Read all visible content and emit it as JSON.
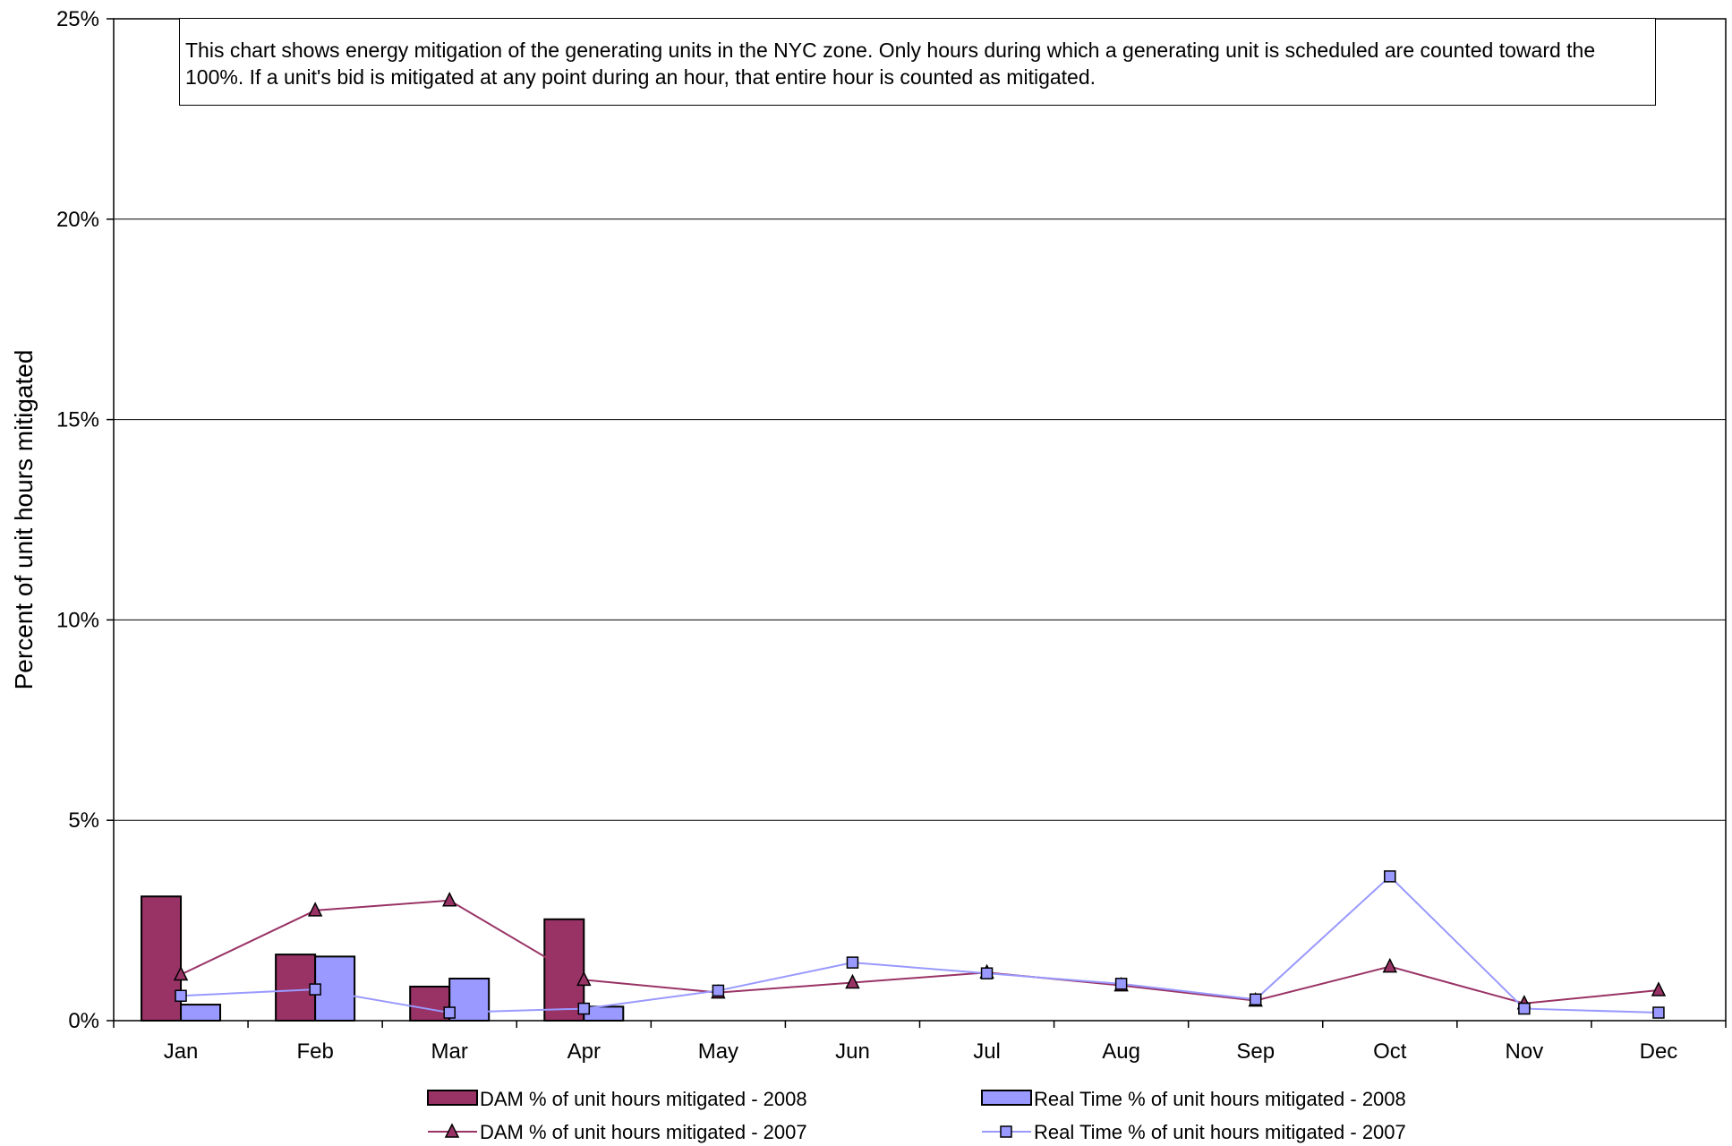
{
  "chart_data": {
    "type": "bar",
    "ylabel": "Percent of unit hours mitigated",
    "ylim": [
      0,
      0.25
    ],
    "yticks": [
      "0%",
      "5%",
      "10%",
      "15%",
      "20%",
      "25%"
    ],
    "categories": [
      "Jan",
      "Feb",
      "Mar",
      "Apr",
      "May",
      "Jun",
      "Jul",
      "Aug",
      "Sep",
      "Oct",
      "Nov",
      "Dec"
    ],
    "annotation": "This chart shows energy mitigation of the generating units in the NYC zone.  Only hours during which a generating unit is scheduled are counted toward the 100%. If a unit's bid is mitigated at any point during an hour, that entire hour is counted as mitigated.",
    "grid": true,
    "legend_position": "bottom",
    "series": [
      {
        "name": "DAM % of unit hours mitigated - 2008",
        "kind": "bar",
        "color": "#993366",
        "values": [
          0.031,
          0.0165,
          0.0085,
          0.0253,
          null,
          null,
          null,
          null,
          null,
          null,
          null,
          null
        ]
      },
      {
        "name": "Real Time % of unit hours mitigated - 2008",
        "kind": "bar",
        "color": "#9999ff",
        "values": [
          0.004,
          0.016,
          0.0105,
          0.0035,
          null,
          null,
          null,
          null,
          null,
          null,
          null,
          null
        ]
      },
      {
        "name": "DAM % of unit hours mitigated - 2007",
        "kind": "line",
        "marker": "triangle",
        "color": "#993366",
        "values": [
          0.0115,
          0.0275,
          0.03,
          0.0102,
          0.007,
          0.0095,
          0.012,
          0.0088,
          0.005,
          0.0135,
          0.0043,
          0.0076
        ]
      },
      {
        "name": "Real Time % of unit hours mitigated - 2007",
        "kind": "line",
        "marker": "square",
        "color": "#9999ff",
        "values": [
          0.0062,
          0.0078,
          0.002,
          0.003,
          0.0075,
          0.0145,
          0.0118,
          0.0092,
          0.0053,
          0.036,
          0.003,
          0.002
        ]
      }
    ]
  }
}
